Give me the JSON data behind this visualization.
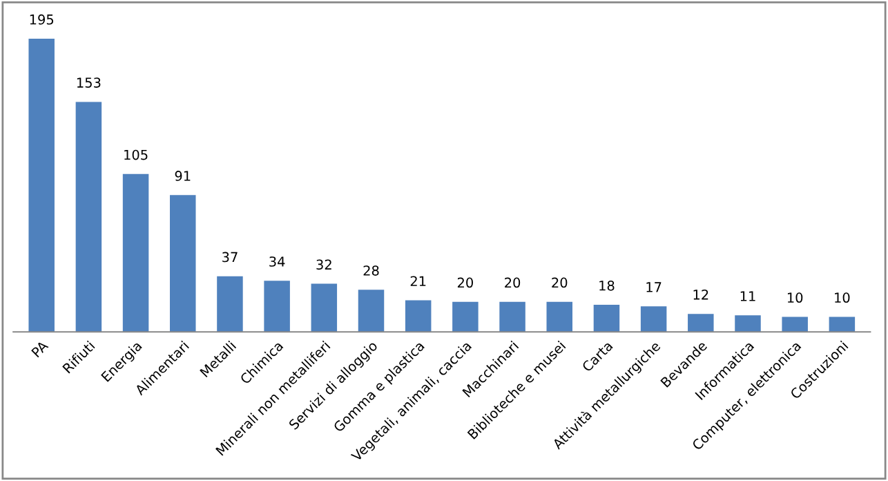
{
  "chart_data": {
    "type": "bar",
    "categories": [
      "PA",
      "Rifiuti",
      "Energia",
      "Alimentari",
      "Metalli",
      "Chimica",
      "Minerali non metalliferi",
      "Servizi di alloggio",
      "Gomma e plastica",
      "Vegetali, animali, caccia",
      "Macchinari",
      "Biblioteche e musei",
      "Carta",
      "Attività metallurgiche",
      "Bevande",
      "Informatica",
      "Computer, elettronica",
      "Costruzioni"
    ],
    "values": [
      195,
      153,
      105,
      91,
      37,
      34,
      32,
      28,
      21,
      20,
      20,
      20,
      18,
      17,
      12,
      11,
      10,
      10
    ],
    "color": "#4f81bd",
    "data_labels": true,
    "grid": false,
    "legend": false
  }
}
